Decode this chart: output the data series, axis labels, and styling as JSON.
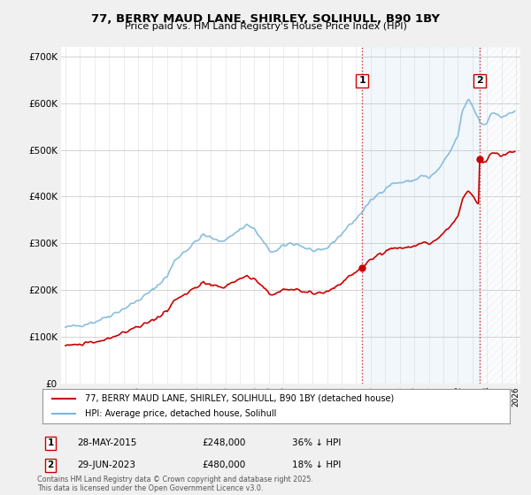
{
  "title": "77, BERRY MAUD LANE, SHIRLEY, SOLIHULL, B90 1BY",
  "subtitle": "Price paid vs. HM Land Registry's House Price Index (HPI)",
  "footnote": "Contains HM Land Registry data © Crown copyright and database right 2025.\nThis data is licensed under the Open Government Licence v3.0.",
  "legend_property": "77, BERRY MAUD LANE, SHIRLEY, SOLIHULL, B90 1BY (detached house)",
  "legend_hpi": "HPI: Average price, detached house, Solihull",
  "sale1_date": "28-MAY-2015",
  "sale1_price": "£248,000",
  "sale1_hpi": "36% ↓ HPI",
  "sale2_date": "29-JUN-2023",
  "sale2_price": "£480,000",
  "sale2_hpi": "18% ↓ HPI",
  "sale1_price_val": 248000,
  "sale2_price_val": 480000,
  "sale1_year": 2015.41,
  "sale2_year": 2023.49,
  "hpi_color": "#7db8d8",
  "property_color": "#cc0000",
  "vline_color": "#cc0000",
  "shade_color": "#ddeeff",
  "background_color": "#f0f0f0",
  "plot_bg_color": "#ffffff",
  "ylim": [
    0,
    720000
  ],
  "yticks": [
    0,
    100000,
    200000,
    300000,
    400000,
    500000,
    600000,
    700000
  ],
  "xlim_left": 1994.7,
  "xlim_right": 2026.3
}
